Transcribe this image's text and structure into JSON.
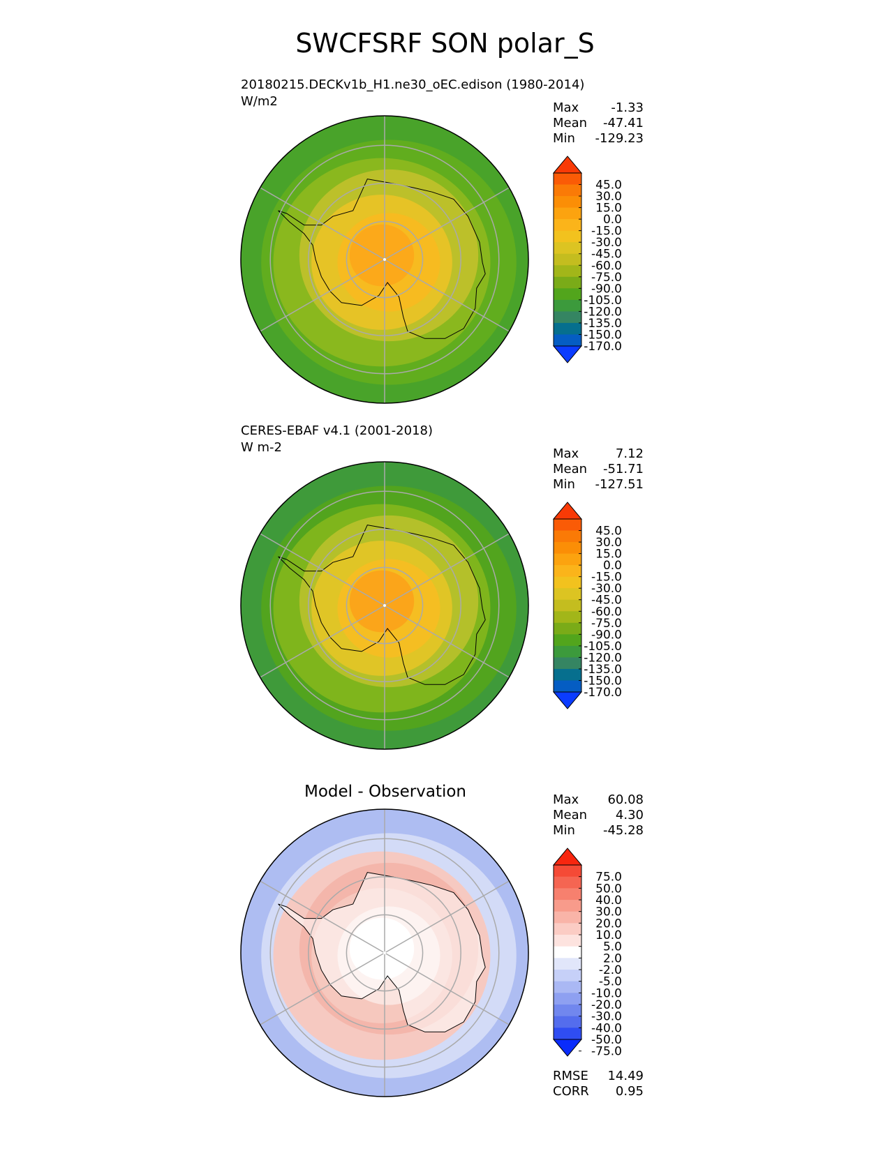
{
  "title": "SWCFSRF SON polar_S",
  "chart_data": [
    {
      "type": "heatmap",
      "projection": "south polar stereographic",
      "name": "20180215.DECKv1b_H1.ne30_oEC.edison (1980-2014)",
      "units": "W/m2",
      "stats": {
        "max_label": "Max",
        "max": "-1.33",
        "mean_label": "Mean",
        "mean": "-47.41",
        "min_label": "Min",
        "min": "-129.23"
      },
      "colorbar": {
        "levels": [
          "45.0",
          "30.0",
          "15.0",
          "0.0",
          "-15.0",
          "-30.0",
          "-45.0",
          "-60.0",
          "-75.0",
          "-90.0",
          "-105.0",
          "-120.0",
          "-135.0",
          "-150.0",
          "-170.0"
        ],
        "colors": [
          "#f93a06",
          "#fa5b06",
          "#fa7a06",
          "#fb8e06",
          "#fca30f",
          "#fbb41a",
          "#f2c21e",
          "#dcc422",
          "#c4bd1f",
          "#a2b619",
          "#7aab18",
          "#52a51c",
          "#3c9a3c",
          "#358562",
          "#066f8e",
          "#055dc3",
          "#0b3cff"
        ]
      },
      "bands": [
        "#49a32a",
        "#61ad1e",
        "#8ab81e",
        "#bcc02a",
        "#e6c326",
        "#f7bb20",
        "#fca91a"
      ]
    },
    {
      "type": "heatmap",
      "projection": "south polar stereographic",
      "name": "CERES-EBAF v4.1 (2001-2018)",
      "units": "W m-2",
      "stats": {
        "max_label": "Max",
        "max": "7.12",
        "mean_label": "Mean",
        "mean": "-51.71",
        "min_label": "Min",
        "min": "-127.51"
      },
      "colorbar": {
        "levels": [
          "45.0",
          "30.0",
          "15.0",
          "0.0",
          "-15.0",
          "-30.0",
          "-45.0",
          "-60.0",
          "-75.0",
          "-90.0",
          "-105.0",
          "-120.0",
          "-135.0",
          "-150.0",
          "-170.0"
        ],
        "colors": [
          "#f93a06",
          "#fa5b06",
          "#fa7a06",
          "#fb8e06",
          "#fca30f",
          "#fbb41a",
          "#f2c21e",
          "#dcc422",
          "#c4bd1f",
          "#a2b619",
          "#7aab18",
          "#52a51c",
          "#3c9a3c",
          "#358562",
          "#066f8e",
          "#055dc3",
          "#0b3cff"
        ]
      },
      "bands": [
        "#3f9a3a",
        "#52a41e",
        "#7fb51c",
        "#b4c02a",
        "#e0c526",
        "#f5be22",
        "#fba51a"
      ]
    },
    {
      "type": "heatmap",
      "projection": "south polar stereographic",
      "title": "Model - Observation",
      "stats": {
        "max_label": "Max",
        "max": "60.08",
        "mean_label": "Mean",
        "mean": "4.30",
        "min_label": "Min",
        "min": "-45.28"
      },
      "metrics": {
        "rmse_label": "RMSE",
        "rmse": "14.49",
        "corr_label": "CORR",
        "corr": "0.95"
      },
      "colorbar": {
        "levels": [
          "75.0",
          "50.0",
          "40.0",
          "30.0",
          "20.0",
          "10.0",
          "5.0",
          "2.0",
          "-2.0",
          "-5.0",
          "-10.0",
          "-20.0",
          "-30.0",
          "-40.0",
          "-50.0",
          "-75.0"
        ],
        "colors": [
          "#f8260f",
          "#f54a36",
          "#f56552",
          "#f7806e",
          "#f89b8b",
          "#f9b4a8",
          "#fbccc4",
          "#fde3df",
          "#ffffff",
          "#e1e6fa",
          "#c6d0f8",
          "#aab8f4",
          "#8ea0f1",
          "#7187ee",
          "#546ded",
          "#2f4df2",
          "#0a2cfb"
        ]
      },
      "bands": [
        "#aebdf2",
        "#d3dbf7",
        "#f6c9c1",
        "#f4b6ab",
        "#f6c8be",
        "#fbe4df",
        "#ffffff"
      ]
    }
  ]
}
